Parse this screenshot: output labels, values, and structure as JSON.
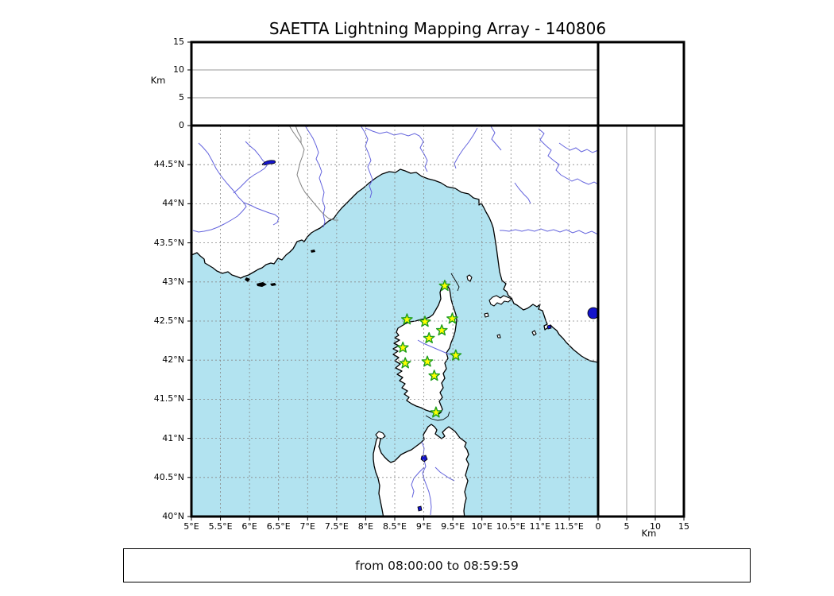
{
  "title": "SAETTA Lightning Mapping Array - 140806",
  "footer": "from 08:00:00 to 08:59:59",
  "units": {
    "altitude": "Km"
  },
  "colors": {
    "sea": "#b2e3f0",
    "land": "#ffffff",
    "coastline": "#000000",
    "river": "#6363dd",
    "lake": "#1414cc",
    "gridline": "#888888",
    "panel_gridline": "#999999",
    "country_border": "#808080",
    "station_fill": "#ffff00",
    "station_edge": "#1e9e1e",
    "frame": "#000000"
  },
  "axes": {
    "map_x_ticks": [
      {
        "value": 5,
        "label": "5°E"
      },
      {
        "value": 5.5,
        "label": "5.5°E"
      },
      {
        "value": 6,
        "label": "6°E"
      },
      {
        "value": 6.5,
        "label": "6.5°E"
      },
      {
        "value": 7,
        "label": "7°E"
      },
      {
        "value": 7.5,
        "label": "7.5°E"
      },
      {
        "value": 8,
        "label": "8°E"
      },
      {
        "value": 8.5,
        "label": "8.5°E"
      },
      {
        "value": 9,
        "label": "9°E"
      },
      {
        "value": 9.5,
        "label": "9.5°E"
      },
      {
        "value": 10,
        "label": "10°E"
      },
      {
        "value": 10.5,
        "label": "10.5°E"
      },
      {
        "value": 11,
        "label": "11°E"
      },
      {
        "value": 11.5,
        "label": "11.5°E"
      }
    ],
    "map_y_ticks": [
      {
        "value": 40,
        "label": "40°N"
      },
      {
        "value": 40.5,
        "label": "40.5°N"
      },
      {
        "value": 41,
        "label": "41°N"
      },
      {
        "value": 41.5,
        "label": "41.5°N"
      },
      {
        "value": 42,
        "label": "42°N"
      },
      {
        "value": 42.5,
        "label": "42.5°N"
      },
      {
        "value": 43,
        "label": "43°N"
      },
      {
        "value": 43.5,
        "label": "43.5°N"
      },
      {
        "value": 44,
        "label": "44°N"
      },
      {
        "value": 44.5,
        "label": "44.5°N"
      }
    ],
    "altitude_ticks": [
      {
        "value": 0,
        "label": "0"
      },
      {
        "value": 5,
        "label": "5"
      },
      {
        "value": 10,
        "label": "10"
      },
      {
        "value": 15,
        "label": "15"
      }
    ]
  },
  "chart_data": {
    "type": "scatter",
    "title": "SAETTA Lightning Mapping Array - 140806",
    "time_window": "from 08:00:00 to 08:59:59",
    "map_extent": {
      "lon_deg_east": [
        5,
        12
      ],
      "lat_deg_north": [
        40,
        45
      ],
      "grid_step_deg": 0.5
    },
    "altitude_axis": {
      "unit": "Km",
      "range": [
        0,
        15
      ],
      "ticks": [
        0,
        5,
        10,
        15
      ]
    },
    "lightning_points": [],
    "stations": [
      {
        "lon": 9.36,
        "lat": 42.95
      },
      {
        "lon": 8.71,
        "lat": 42.52
      },
      {
        "lon": 9.02,
        "lat": 42.49
      },
      {
        "lon": 9.49,
        "lat": 42.53
      },
      {
        "lon": 9.31,
        "lat": 42.38
      },
      {
        "lon": 9.09,
        "lat": 42.28
      },
      {
        "lon": 8.64,
        "lat": 42.16
      },
      {
        "lon": 9.55,
        "lat": 42.06
      },
      {
        "lon": 8.68,
        "lat": 41.96
      },
      {
        "lon": 9.06,
        "lat": 41.98
      },
      {
        "lon": 9.18,
        "lat": 41.8
      },
      {
        "lon": 9.21,
        "lat": 41.33
      }
    ]
  }
}
